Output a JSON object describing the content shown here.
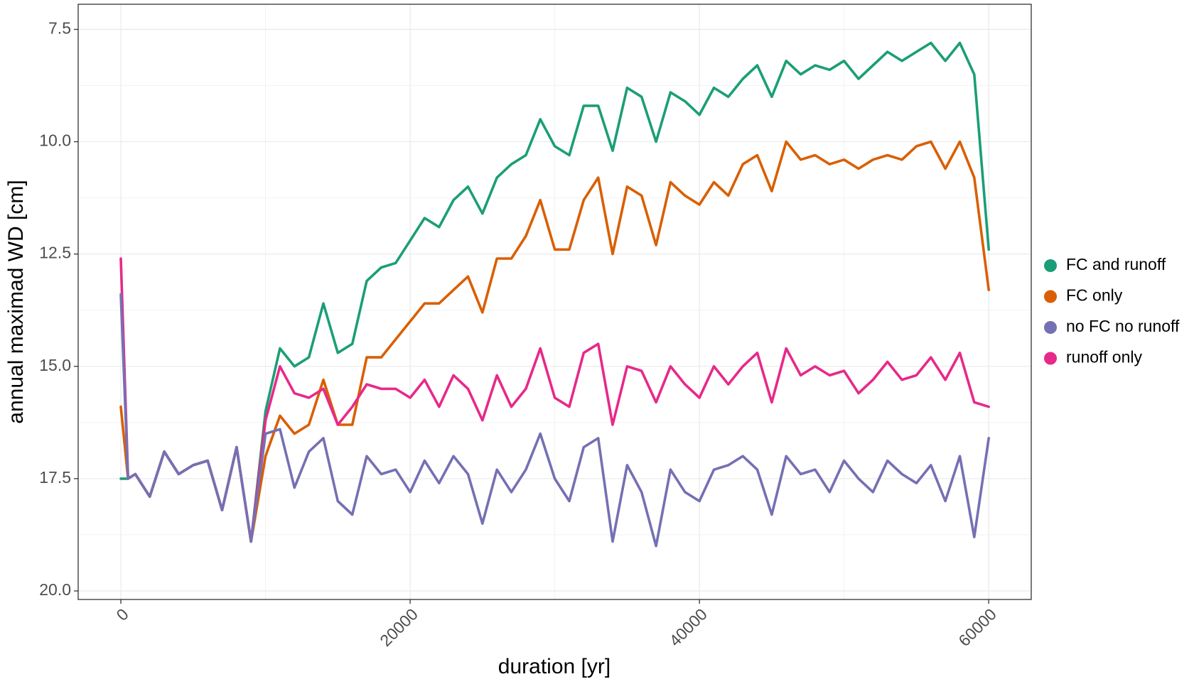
{
  "chart_data": {
    "type": "line",
    "xlabel": "duration [yr]",
    "ylabel": "annual maximad WD [cm]",
    "x": [
      0,
      500,
      1000,
      2000,
      3000,
      4000,
      5000,
      6000,
      7000,
      8000,
      9000,
      10000,
      11000,
      12000,
      13000,
      14000,
      15000,
      16000,
      17000,
      18000,
      19000,
      20000,
      21000,
      22000,
      23000,
      24000,
      25000,
      26000,
      27000,
      28000,
      29000,
      30000,
      31000,
      32000,
      33000,
      34000,
      35000,
      36000,
      37000,
      38000,
      39000,
      40000,
      41000,
      42000,
      43000,
      44000,
      45000,
      46000,
      47000,
      48000,
      49000,
      50000,
      51000,
      52000,
      53000,
      54000,
      55000,
      56000,
      57000,
      58000,
      59000,
      60000
    ],
    "series": [
      {
        "name": "FC and runoff",
        "color": "#1b9e77",
        "values": [
          17.5,
          17.5,
          17.4,
          17.9,
          16.9,
          17.4,
          17.2,
          17.1,
          18.2,
          16.8,
          18.9,
          16.0,
          14.6,
          15.0,
          14.8,
          13.6,
          14.7,
          14.5,
          13.1,
          12.8,
          12.7,
          12.2,
          11.7,
          11.9,
          11.3,
          11.0,
          11.6,
          10.8,
          10.5,
          10.3,
          9.5,
          10.1,
          10.3,
          9.2,
          9.2,
          10.2,
          8.8,
          9.0,
          10.0,
          8.9,
          9.1,
          9.4,
          8.8,
          9.0,
          8.6,
          8.3,
          9.0,
          8.2,
          8.5,
          8.3,
          8.4,
          8.2,
          8.6,
          8.3,
          8.0,
          8.2,
          8.0,
          7.8,
          8.2,
          7.8,
          8.5,
          12.4
        ]
      },
      {
        "name": "FC only",
        "color": "#d95f02",
        "values": [
          15.9,
          17.5,
          17.4,
          17.9,
          16.9,
          17.4,
          17.2,
          17.1,
          18.2,
          16.8,
          18.9,
          17.0,
          16.1,
          16.5,
          16.3,
          15.3,
          16.3,
          16.3,
          14.8,
          14.8,
          14.4,
          14.0,
          13.6,
          13.6,
          13.3,
          13.0,
          13.8,
          12.6,
          12.6,
          12.1,
          11.3,
          12.4,
          12.4,
          11.3,
          10.8,
          12.5,
          11.0,
          11.2,
          12.3,
          10.9,
          11.2,
          11.4,
          10.9,
          11.2,
          10.5,
          10.3,
          11.1,
          10.0,
          10.4,
          10.3,
          10.5,
          10.4,
          10.6,
          10.4,
          10.3,
          10.4,
          10.1,
          10.0,
          10.6,
          10.0,
          10.8,
          13.3
        ]
      },
      {
        "name": "no FC no runoff",
        "color": "#7570b3",
        "values": [
          13.4,
          17.5,
          17.4,
          17.9,
          16.9,
          17.4,
          17.2,
          17.1,
          18.2,
          16.8,
          18.9,
          16.5,
          16.4,
          17.7,
          16.9,
          16.6,
          18.0,
          18.3,
          17.0,
          17.4,
          17.3,
          17.8,
          17.1,
          17.6,
          17.0,
          17.4,
          18.5,
          17.3,
          17.8,
          17.3,
          16.5,
          17.5,
          18.0,
          16.8,
          16.6,
          18.9,
          17.2,
          17.8,
          19.0,
          17.3,
          17.8,
          18.0,
          17.3,
          17.2,
          17.0,
          17.3,
          18.3,
          17.0,
          17.4,
          17.3,
          17.8,
          17.1,
          17.5,
          17.8,
          17.1,
          17.4,
          17.6,
          17.2,
          18.0,
          17.0,
          18.8,
          16.6
        ]
      },
      {
        "name": "runoff only",
        "color": "#e7298a",
        "values": [
          12.6,
          17.5,
          17.4,
          17.9,
          16.9,
          17.4,
          17.2,
          17.1,
          18.2,
          16.8,
          18.9,
          16.2,
          15.0,
          15.6,
          15.7,
          15.5,
          16.3,
          15.9,
          15.4,
          15.5,
          15.5,
          15.7,
          15.3,
          15.9,
          15.2,
          15.5,
          16.2,
          15.2,
          15.9,
          15.5,
          14.6,
          15.7,
          15.9,
          14.7,
          14.5,
          16.3,
          15.0,
          15.1,
          15.8,
          15.0,
          15.4,
          15.7,
          15.0,
          15.4,
          15.0,
          14.7,
          15.8,
          14.6,
          15.2,
          15.0,
          15.2,
          15.1,
          15.6,
          15.3,
          14.9,
          15.3,
          15.2,
          14.8,
          15.3,
          14.7,
          15.8,
          15.9
        ]
      }
    ],
    "xlim": [
      -2950,
      62940
    ],
    "ylim": [
      6.94,
      20.19
    ],
    "y_reversed": true,
    "xticks": [
      0,
      20000,
      40000,
      60000
    ],
    "yticks": [
      7.5,
      {
        "value": 10,
        "label": "10.0"
      },
      12.5,
      {
        "value": 15,
        "label": "15.0"
      },
      17.5,
      {
        "value": 20,
        "label": "20.0"
      }
    ],
    "grid": true,
    "legend": "right"
  }
}
